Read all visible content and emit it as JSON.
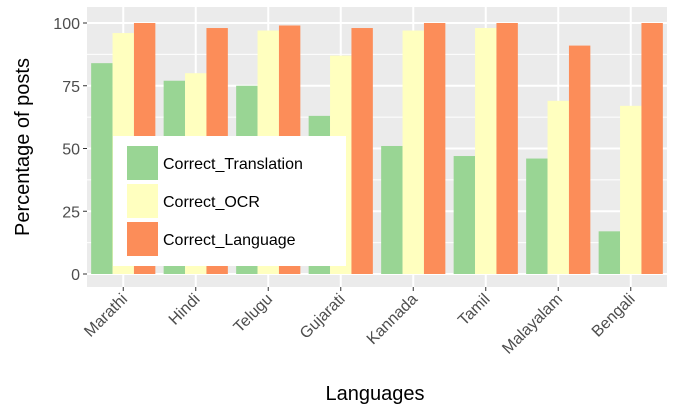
{
  "chart_data": {
    "type": "bar",
    "title": "",
    "xlabel": "Languages",
    "ylabel": "Percentage of posts",
    "ylim": [
      0,
      100
    ],
    "yticks": [
      0,
      25,
      50,
      75,
      100
    ],
    "grid": true,
    "legend_position": "lower-left (inside plot)",
    "categories": [
      "Marathi",
      "Hindi",
      "Telugu",
      "Gujarati",
      "Kannada",
      "Tamil",
      "Malayalam",
      "Bengali"
    ],
    "series": [
      {
        "name": "Correct_Translation",
        "color": "#99d594",
        "values": [
          84,
          77,
          75,
          63,
          51,
          47,
          46,
          17
        ]
      },
      {
        "name": "Correct_OCR",
        "color": "#ffffbf",
        "values": [
          96,
          80,
          97,
          87,
          97,
          98,
          69,
          67
        ]
      },
      {
        "name": "Correct_Language",
        "color": "#fc8d59",
        "values": [
          100,
          98,
          99,
          98,
          100,
          100,
          91,
          100
        ]
      }
    ]
  },
  "panel_background": "#ebebeb",
  "grid_color": "#ffffff"
}
